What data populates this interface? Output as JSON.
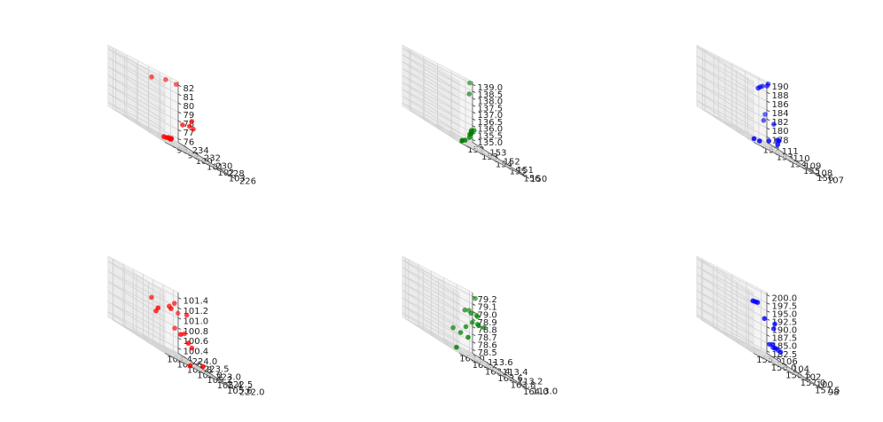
{
  "figure": {
    "rows": 2,
    "cols": 3
  },
  "chart_data": [
    {
      "type": "scatter3d",
      "color": "#ff0000",
      "x_ticks": [
        98,
        99,
        100,
        101,
        102,
        103
      ],
      "y_ticks": [
        226,
        228,
        230,
        232,
        234
      ],
      "z_ticks": [
        76,
        77,
        78,
        79,
        80,
        81,
        82
      ],
      "xlim": [
        97.3,
        103.7
      ],
      "ylim": [
        225.2,
        234.8
      ],
      "zlim": [
        75.6,
        82.4
      ],
      "points": [
        {
          "x": 97.7,
          "y": 226.1,
          "z": 76.1
        },
        {
          "x": 98.2,
          "y": 226.6,
          "z": 76.1
        },
        {
          "x": 98.6,
          "y": 227.0,
          "z": 76.2
        },
        {
          "x": 98.9,
          "y": 227.3,
          "z": 76.1
        },
        {
          "x": 99.1,
          "y": 227.5,
          "z": 76.1
        },
        {
          "x": 99.3,
          "y": 227.8,
          "z": 76.2
        },
        {
          "x": 101.4,
          "y": 229.8,
          "z": 78.2
        },
        {
          "x": 102.3,
          "y": 230.3,
          "z": 78.4
        },
        {
          "x": 102.7,
          "y": 230.4,
          "z": 78.3
        },
        {
          "x": 103.1,
          "y": 231.4,
          "z": 79.0
        },
        {
          "x": 99.7,
          "y": 231.9,
          "z": 81.6
        },
        {
          "x": 101.8,
          "y": 233.4,
          "z": 82.0
        },
        {
          "x": 103.3,
          "y": 234.4,
          "z": 82.0
        }
      ]
    },
    {
      "type": "scatter3d",
      "color": "#008000",
      "x_ticks": [
        152,
        153,
        154,
        155,
        156
      ],
      "y_ticks": [
        150,
        151,
        152,
        153
      ],
      "z_ticks": [
        "135.0",
        "135.5",
        "136.0",
        "136.5",
        "137.0",
        "137.5",
        "138.0",
        "138.5",
        "139.0"
      ],
      "xlim": [
        151.5,
        156.5
      ],
      "ylim": [
        149.4,
        153.6
      ],
      "zlim": [
        134.8,
        139.2
      ],
      "points": [
        {
          "x": 151.9,
          "y": 149.6,
          "z": 135.0
        },
        {
          "x": 152.1,
          "y": 149.8,
          "z": 135.0
        },
        {
          "x": 152.5,
          "y": 150.0,
          "z": 135.1
        },
        {
          "x": 153.3,
          "y": 150.5,
          "z": 135.4
        },
        {
          "x": 153.6,
          "y": 150.8,
          "z": 135.6
        },
        {
          "x": 153.8,
          "y": 150.9,
          "z": 135.7
        },
        {
          "x": 153.9,
          "y": 151.0,
          "z": 135.7
        },
        {
          "x": 154.0,
          "y": 151.1,
          "z": 135.8
        },
        {
          "x": 154.1,
          "y": 151.2,
          "z": 135.9
        },
        {
          "x": 154.3,
          "y": 151.2,
          "z": 136.0
        },
        {
          "x": 155.3,
          "y": 152.6,
          "z": 138.3
        },
        {
          "x": 156.2,
          "y": 153.5,
          "z": 139.0
        }
      ]
    },
    {
      "type": "scatter3d",
      "color": "#0000ff",
      "x_ticks": [
        152,
        153,
        154,
        155,
        156
      ],
      "y_ticks": [
        107,
        108,
        109,
        110,
        111
      ],
      "z_ticks": [
        178,
        180,
        182,
        184,
        186,
        188,
        190
      ],
      "xlim": [
        151.4,
        156.6
      ],
      "ylim": [
        106.5,
        111.5
      ],
      "zlim": [
        176.8,
        190.4
      ],
      "points": [
        {
          "x": 151.6,
          "y": 106.7,
          "z": 177.6
        },
        {
          "x": 152.1,
          "y": 106.8,
          "z": 177.7
        },
        {
          "x": 153.3,
          "y": 107.4,
          "z": 178.6
        },
        {
          "x": 154.2,
          "y": 107.7,
          "z": 178.7
        },
        {
          "x": 154.6,
          "y": 108.2,
          "z": 179.5
        },
        {
          "x": 154.9,
          "y": 108.4,
          "z": 179.5
        },
        {
          "x": 155.6,
          "y": 110.6,
          "z": 181.6
        },
        {
          "x": 156.1,
          "y": 110.3,
          "z": 182.0
        },
        {
          "x": 156.3,
          "y": 111.3,
          "z": 182.9
        },
        {
          "x": 154.1,
          "y": 109.3,
          "z": 188.6
        },
        {
          "x": 154.5,
          "y": 109.6,
          "z": 189.0
        },
        {
          "x": 155.1,
          "y": 110.1,
          "z": 189.3
        },
        {
          "x": 155.6,
          "y": 110.3,
          "z": 189.8
        },
        {
          "x": 156.2,
          "y": 110.9,
          "z": 190.2
        }
      ]
    },
    {
      "type": "scatter3d",
      "color": "#ff0000",
      "x_ticks": [
        "104.4",
        "104.6",
        "104.8",
        "105.0",
        "105.2",
        "105.4",
        "105.6"
      ],
      "y_ticks": [
        "222.0",
        "222.5",
        "223.0",
        "223.5",
        "224.0"
      ],
      "z_ticks": [
        "100.4",
        "100.6",
        "100.8",
        "101.0",
        "101.2",
        "101.4"
      ],
      "xlim": [
        104.3,
        105.7
      ],
      "ylim": [
        221.8,
        224.2
      ],
      "zlim": [
        100.3,
        101.5
      ],
      "points": [
        {
          "x": 104.4,
          "y": 222.3,
          "z": 101.1
        },
        {
          "x": 104.5,
          "y": 222.6,
          "z": 101.0
        },
        {
          "x": 104.6,
          "y": 223.0,
          "z": 101.2
        },
        {
          "x": 104.8,
          "y": 222.6,
          "z": 101.2
        },
        {
          "x": 104.9,
          "y": 222.4,
          "z": 100.8
        },
        {
          "x": 105.1,
          "y": 222.5,
          "z": 100.7
        },
        {
          "x": 104.9,
          "y": 222.0,
          "z": 100.3
        },
        {
          "x": 105.3,
          "y": 222.3,
          "z": 100.4
        },
        {
          "x": 105.0,
          "y": 223.1,
          "z": 101.2
        },
        {
          "x": 105.2,
          "y": 223.3,
          "z": 101.3
        },
        {
          "x": 105.4,
          "y": 223.2,
          "z": 101.2
        },
        {
          "x": 105.3,
          "y": 223.5,
          "z": 100.8
        },
        {
          "x": 105.4,
          "y": 223.3,
          "z": 100.8
        },
        {
          "x": 105.5,
          "y": 223.2,
          "z": 100.6
        },
        {
          "x": 105.6,
          "y": 224.0,
          "z": 101.1
        }
      ]
    },
    {
      "type": "scatter3d",
      "color": "#008000",
      "x_ticks": [
        "163.0",
        "163.2",
        "163.4",
        "163.6",
        "163.8",
        "164.0"
      ],
      "y_ticks": [
        "113.0",
        "113.2",
        "113.4",
        "113.6"
      ],
      "z_ticks": [
        "78.5",
        "78.6",
        "78.7",
        "78.8",
        "78.9",
        "79.0",
        "79.1",
        "79.2"
      ],
      "xlim": [
        162.95,
        164.05
      ],
      "ylim": [
        112.92,
        113.68
      ],
      "zlim": [
        78.45,
        79.25
      ],
      "points": [
        {
          "x": 163.0,
          "y": 113.0,
          "z": 78.5
        },
        {
          "x": 163.3,
          "y": 113.3,
          "z": 78.7
        },
        {
          "x": 163.3,
          "y": 113.2,
          "z": 78.7
        },
        {
          "x": 163.3,
          "y": 113.1,
          "z": 78.7
        },
        {
          "x": 163.5,
          "y": 113.3,
          "z": 78.8
        },
        {
          "x": 163.6,
          "y": 113.3,
          "z": 78.9
        },
        {
          "x": 163.7,
          "y": 113.3,
          "z": 78.9
        },
        {
          "x": 163.8,
          "y": 113.4,
          "z": 78.9
        },
        {
          "x": 163.9,
          "y": 113.4,
          "z": 78.9
        },
        {
          "x": 163.9,
          "y": 113.5,
          "z": 79.0
        },
        {
          "x": 163.9,
          "y": 113.6,
          "z": 79.0
        },
        {
          "x": 163.6,
          "y": 113.4,
          "z": 79.0
        },
        {
          "x": 163.7,
          "y": 113.4,
          "z": 79.0
        },
        {
          "x": 163.8,
          "y": 113.4,
          "z": 79.0
        },
        {
          "x": 164.0,
          "y": 113.6,
          "z": 79.2
        }
      ]
    },
    {
      "type": "scatter3d",
      "color": "#0000ff",
      "x_ticks": [
        "155.5",
        "156.0",
        "156.5",
        "157.0",
        "157.5"
      ],
      "y_ticks": [
        98,
        100,
        102,
        104,
        106
      ],
      "z_ticks": [
        "182.5",
        "185.0",
        "187.5",
        "190.0",
        "192.5",
        "195.0",
        "197.5",
        "200.0"
      ],
      "xlim": [
        155.3,
        157.7
      ],
      "ylim": [
        97.2,
        106.8
      ],
      "zlim": [
        181.8,
        200.7
      ],
      "points": [
        {
          "x": 155.4,
          "y": 97.8,
          "z": 197.9
        },
        {
          "x": 155.5,
          "y": 97.9,
          "z": 198.0
        },
        {
          "x": 155.6,
          "y": 98.0,
          "z": 198.1
        },
        {
          "x": 156.2,
          "y": 99.8,
          "z": 193.8
        },
        {
          "x": 156.8,
          "y": 101.0,
          "z": 193.5
        },
        {
          "x": 156.8,
          "y": 101.2,
          "z": 191.8
        },
        {
          "x": 156.9,
          "y": 102.4,
          "z": 186.0
        },
        {
          "x": 157.0,
          "y": 102.4,
          "z": 186.4
        },
        {
          "x": 157.1,
          "y": 102.5,
          "z": 185.6
        },
        {
          "x": 157.2,
          "y": 102.8,
          "z": 185.6
        },
        {
          "x": 157.3,
          "y": 102.9,
          "z": 185.4
        },
        {
          "x": 157.4,
          "y": 103.0,
          "z": 185.2
        },
        {
          "x": 157.6,
          "y": 105.3,
          "z": 184.9
        }
      ]
    }
  ]
}
